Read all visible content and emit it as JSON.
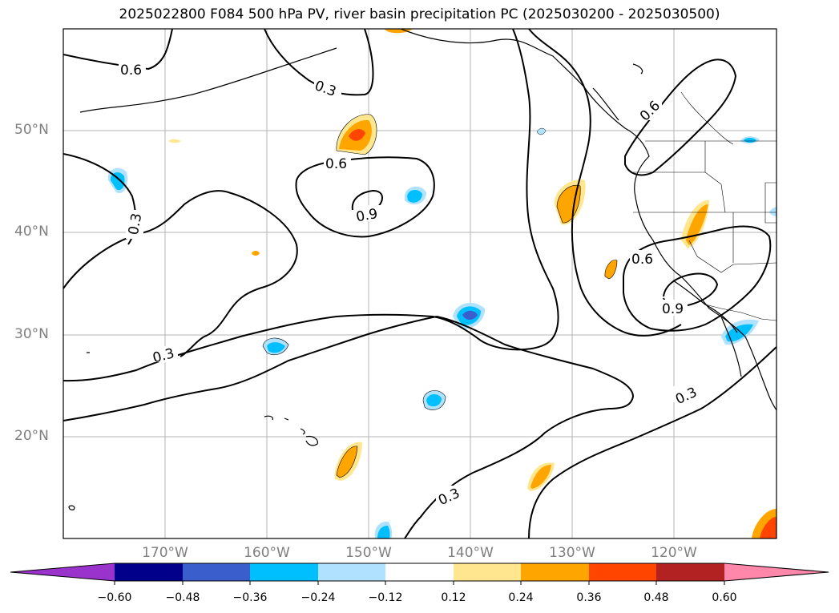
{
  "title": "2025022800 F084 500 hPa PV, river basin precipitation PC (2025030200 - 2025030500)",
  "lat_labels": [
    "50°N",
    "40°N",
    "30°N",
    "20°N"
  ],
  "lon_labels": [
    "170°W",
    "160°W",
    "150°W",
    "140°W",
    "130°W",
    "120°W"
  ],
  "contour_labels": [
    "0.6",
    "0.3",
    "0.6",
    "0.9",
    "0.3",
    "0.6",
    "0.6",
    "0.9",
    "0.3",
    "0.3",
    "0.3"
  ],
  "colorbar": {
    "ticks": [
      "−0.60",
      "−0.48",
      "−0.36",
      "−0.24",
      "−0.12",
      "0.12",
      "0.24",
      "0.36",
      "0.48",
      "0.60"
    ],
    "colors": [
      "#9933cc",
      "#00008b",
      "#3a5fcd",
      "#00bfff",
      "#b0e2ff",
      "#ffffff",
      "#ffe68f",
      "#ffa500",
      "#ff4500",
      "#b22222",
      "#ff88aa"
    ]
  }
}
